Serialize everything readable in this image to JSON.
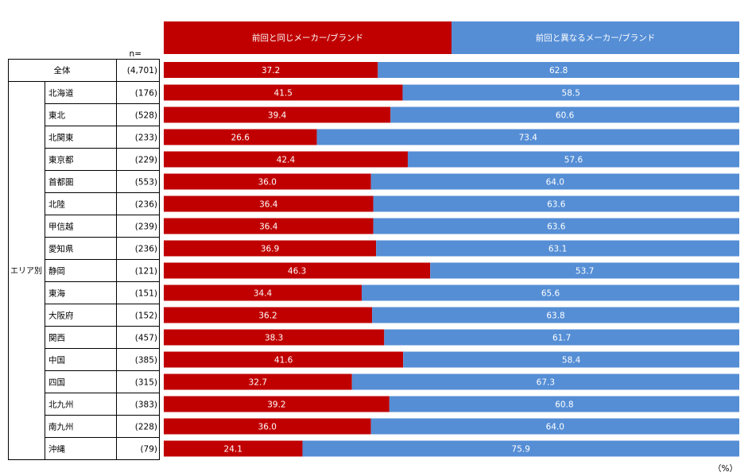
{
  "chart_data": {
    "type": "bar",
    "orientation": "horizontal",
    "stacked": true,
    "percent_scale": [
      0,
      100
    ],
    "legend": {
      "position": "top",
      "items": [
        {
          "label": "前回と同じメーカー/ブランド",
          "color": "#c00000"
        },
        {
          "label": "前回と異なるメーカー/ブランド",
          "color": "#558ed5"
        }
      ]
    },
    "n_header": "n=",
    "unit_label": "（%）",
    "total_row": {
      "label": "全体",
      "n": "(4,701)",
      "values": [
        37.2,
        62.8
      ]
    },
    "group_label": "エリア別",
    "rows": [
      {
        "label": "北海道",
        "n": "(176)",
        "values": [
          41.5,
          58.5
        ]
      },
      {
        "label": "東北",
        "n": "(528)",
        "values": [
          39.4,
          60.6
        ]
      },
      {
        "label": "北関東",
        "n": "(233)",
        "values": [
          26.6,
          73.4
        ]
      },
      {
        "label": "東京都",
        "n": "(229)",
        "values": [
          42.4,
          57.6
        ]
      },
      {
        "label": "首都圏",
        "n": "(553)",
        "values": [
          36.0,
          64.0
        ]
      },
      {
        "label": "北陸",
        "n": "(236)",
        "values": [
          36.4,
          63.6
        ]
      },
      {
        "label": "甲信越",
        "n": "(239)",
        "values": [
          36.4,
          63.6
        ]
      },
      {
        "label": "愛知県",
        "n": "(236)",
        "values": [
          36.9,
          63.1
        ]
      },
      {
        "label": "静岡",
        "n": "(121)",
        "values": [
          46.3,
          53.7
        ]
      },
      {
        "label": "東海",
        "n": "(151)",
        "values": [
          34.4,
          65.6
        ]
      },
      {
        "label": "大阪府",
        "n": "(152)",
        "values": [
          36.2,
          63.8
        ]
      },
      {
        "label": "関西",
        "n": "(457)",
        "values": [
          38.3,
          61.7
        ]
      },
      {
        "label": "中国",
        "n": "(385)",
        "values": [
          41.6,
          58.4
        ]
      },
      {
        "label": "四国",
        "n": "(315)",
        "values": [
          32.7,
          67.3
        ]
      },
      {
        "label": "北九州",
        "n": "(383)",
        "values": [
          39.2,
          60.8
        ]
      },
      {
        "label": "南九州",
        "n": "(228)",
        "values": [
          36.0,
          64.0
        ]
      },
      {
        "label": "沖縄",
        "n": "(79)",
        "values": [
          24.1,
          75.9
        ]
      }
    ]
  }
}
